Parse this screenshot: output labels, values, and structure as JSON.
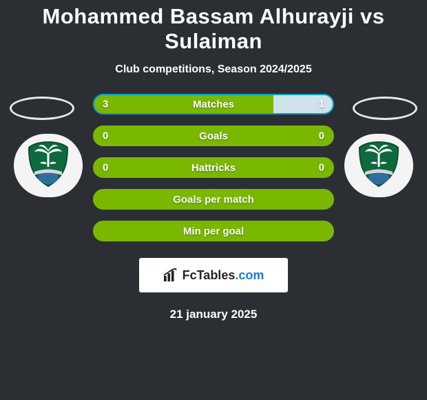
{
  "colors": {
    "page_background": "#2b2f33",
    "ellipse_border": "#e7e8e9",
    "badge_background": "#f4f4f4",
    "logo_box_background": "#ffffff",
    "logo_text": "#232323",
    "logo_ext": "#1a7dd6"
  },
  "title": "Mohammed Bassam Alhurayji vs Sulaiman",
  "subtitle": "Club competitions, Season 2024/2025",
  "crest": {
    "shield_fill": "#0e6a3d",
    "shield_stroke": "#0a4f2e",
    "palm_fill": "#ffffff",
    "lower_fill": "#2f6d9e",
    "ribbon_fill": "#d4d7da"
  },
  "stats": [
    {
      "label": "Matches",
      "left_value": "3",
      "right_value": "1",
      "total": 4,
      "left_share": 0.75,
      "row_color": "#0aa0c6",
      "left_fill": "#7ab800",
      "right_fill": "#cfe3ea",
      "show_values": true
    },
    {
      "label": "Goals",
      "left_value": "0",
      "right_value": "0",
      "total": 0,
      "left_share": 0,
      "row_color": "#7ab800",
      "left_fill": "#7ab800",
      "right_fill": "#7ab800",
      "show_values": true
    },
    {
      "label": "Hattricks",
      "left_value": "0",
      "right_value": "0",
      "total": 0,
      "left_share": 0,
      "row_color": "#7ab800",
      "left_fill": "#7ab800",
      "right_fill": "#7ab800",
      "show_values": true
    },
    {
      "label": "Goals per match",
      "left_value": "",
      "right_value": "",
      "total": 0,
      "left_share": 0,
      "row_color": "#7ab800",
      "left_fill": "#7ab800",
      "right_fill": "#7ab800",
      "show_values": false
    },
    {
      "label": "Min per goal",
      "left_value": "",
      "right_value": "",
      "total": 0,
      "left_share": 0,
      "row_color": "#7ab800",
      "left_fill": "#7ab800",
      "right_fill": "#7ab800",
      "show_values": false
    }
  ],
  "logo": {
    "brand": "FcTables",
    "ext": ".com"
  },
  "date": "21 january 2025"
}
